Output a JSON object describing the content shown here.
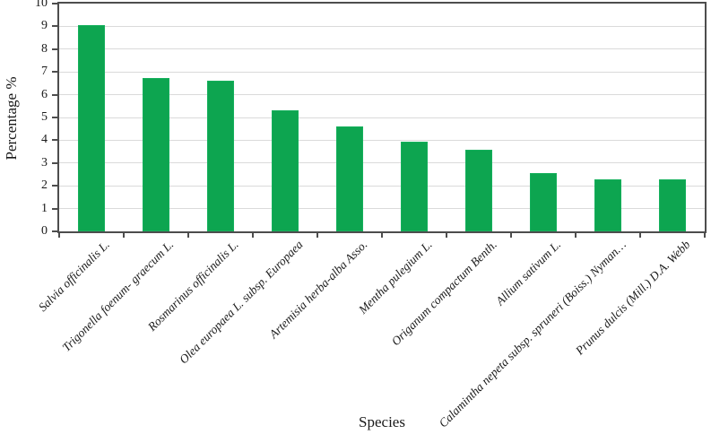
{
  "chart_data": {
    "type": "bar",
    "title": "",
    "xlabel": "Species",
    "ylabel": "Percentage %",
    "categories": [
      "Salvia officinalis L.",
      "Trigonella foenum- graecum L.",
      "Rosmarinus officinalis L.",
      "Olea europaea L. subsp. Europaea",
      "Artemisia herba-alba Asso.",
      "Mentha pulegium L.",
      "Origanum compactum Benth.",
      "Allium sativum L.",
      "Calamintha nepeta subsp. spruneri (Boiss.) Nyman…",
      "Prunus dulcis (Mill.) D.A. Webb"
    ],
    "values": [
      9.05,
      6.75,
      6.6,
      5.3,
      4.6,
      3.95,
      3.6,
      2.55,
      2.3,
      2.3
    ],
    "ylim": [
      0,
      10
    ],
    "yticks": [
      0,
      1,
      2,
      3,
      4,
      5,
      6,
      7,
      8,
      9,
      10
    ],
    "grid": true,
    "legend_position": "none",
    "bar_color": "#0da550",
    "bar_edge_color": "#15b05c",
    "gridline_color": "#dadada",
    "axis_color": "#4d4d4d",
    "text_color": "#1a1a1a"
  }
}
